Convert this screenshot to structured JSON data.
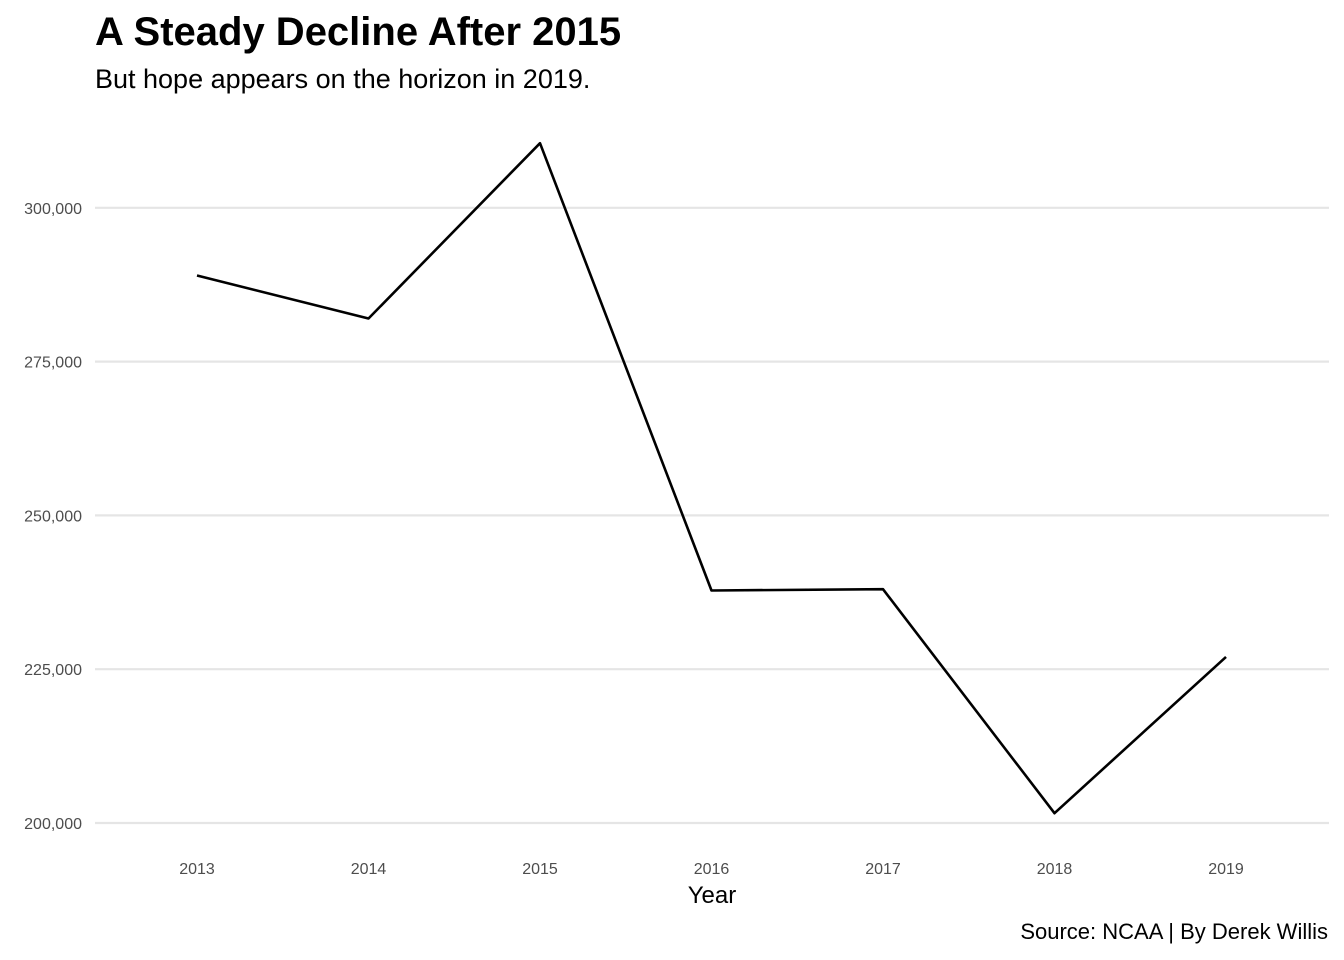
{
  "chart_data": {
    "type": "line",
    "title": "A Steady Decline After 2015",
    "subtitle": "But hope appears on the horizon in 2019.",
    "caption": "Source: NCAA | By Derek Willis",
    "xlabel": "Year",
    "ylabel": "",
    "x": [
      "2013",
      "2014",
      "2015",
      "2016",
      "2017",
      "2018",
      "2019"
    ],
    "series": [
      {
        "values": [
          289000,
          282000,
          310500,
          237800,
          238000,
          201600,
          227000
        ]
      }
    ],
    "y_ticks": [
      200000,
      225000,
      250000,
      275000,
      300000
    ],
    "y_tick_labels": [
      "200,000",
      "225,000",
      "250,000",
      "275,000",
      "300,000"
    ],
    "ylim": [
      200000,
      310500
    ],
    "grid": "horizontal major",
    "legend": "none",
    "colors": {
      "line": "#000000",
      "grid": "#e5e5e5",
      "tick_text": "#4d4d4d"
    }
  }
}
